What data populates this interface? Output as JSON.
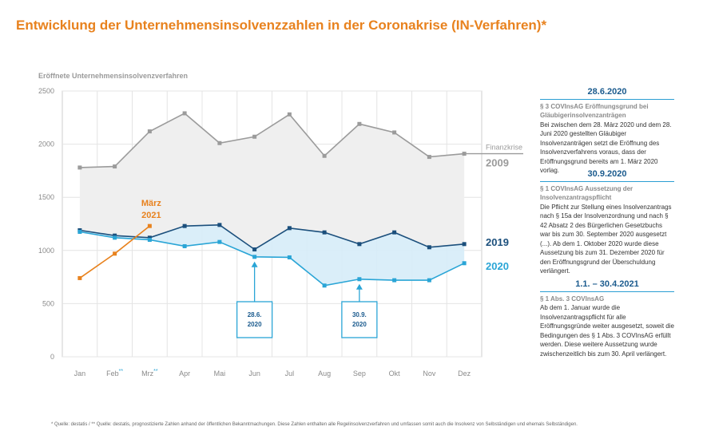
{
  "title": "Entwicklung der Unternehmensinsolvenzzahlen in der Coronakrise (IN-Verfahren)*",
  "colors": {
    "title": "#e8821e",
    "s2009": "#9b9b9b",
    "s2019": "#1b4f7c",
    "s2020": "#2aa5d6",
    "s2021": "#e8821e",
    "band_fill": "#d6ecf8",
    "gray_fill": "#efefef"
  },
  "chart_data": {
    "type": "line",
    "ylabel": "Eröffnete Unternehmensinsolvenzverfahren",
    "ylim": [
      0,
      2500
    ],
    "yticks": [
      "0",
      "500",
      "1000",
      "1500",
      "2000",
      "2500"
    ],
    "categories": [
      "Jan",
      "Feb",
      "Mrz",
      "Apr",
      "Mai",
      "Jun",
      "Jul",
      "Aug",
      "Sep",
      "Okt",
      "Nov",
      "Dez"
    ],
    "category_marks": [
      "",
      "**",
      "**",
      "",
      "",
      "",
      "",
      "",
      "",
      "",
      "",
      ""
    ],
    "grid": true,
    "series": [
      {
        "name": "2009",
        "key": "s2009",
        "values": [
          1780,
          1790,
          2120,
          2290,
          2010,
          2070,
          2280,
          1890,
          2190,
          2110,
          1880,
          1910
        ]
      },
      {
        "name": "2019",
        "key": "s2019",
        "values": [
          1190,
          1140,
          1120,
          1230,
          1240,
          1010,
          1210,
          1170,
          1060,
          1170,
          1030,
          1060
        ]
      },
      {
        "name": "2020",
        "key": "s2020",
        "values": [
          1175,
          1120,
          1100,
          1040,
          1080,
          940,
          935,
          670,
          730,
          720,
          720,
          880
        ]
      },
      {
        "name": "2021",
        "key": "s2021",
        "values": [
          740,
          970,
          1230,
          null,
          null,
          null,
          null,
          null,
          null,
          null,
          null,
          null
        ]
      }
    ],
    "labels": {
      "finanzkrise": "Finanzkrise",
      "s2009": "2009",
      "s2019": "2019",
      "s2020": "2020",
      "s2021_line1": "März",
      "s2021_line2": "2021"
    },
    "annotations": [
      {
        "line1": "28.6.",
        "line2": "2020",
        "month_index": 5
      },
      {
        "line1": "30.9.",
        "line2": "2020",
        "month_index": 8
      }
    ]
  },
  "sidebar": [
    {
      "head": "28.6.2020",
      "sub": "§ 3 COVInsAG Eröffnungsgrund bei Gläubigerinsolvenzanträgen",
      "body": "Bei zwischen dem 28. März 2020 und dem 28. Juni 2020 gestellten Gläubiger Insolvenzanträgen setzt die Eröffnung des Insolvenzverfahrens voraus, dass der Eröffnungsgrund bereits am 1. März 2020 vorlag."
    },
    {
      "head": "30.9.2020",
      "sub": "§ 1 COVInsAG Aussetzung der Insolvenzantragspflicht",
      "body": "Die Pflicht zur Stellung eines Insolvenzantrags nach § 15a der Insolvenzordnung und nach § 42 Absatz 2 des Bürgerlichen Gesetzbuchs war bis zum 30. September 2020 ausgesetzt (...). Ab dem 1. Oktober 2020 wurde diese Aussetzung bis zum 31. Dezember 2020 für den Eröffnungsgrund der Überschuldung verlängert."
    },
    {
      "head": "1.1. – 30.4.2021",
      "sub": "§ 1 Abs. 3 COVInsAG",
      "body": "Ab dem 1. Januar wurde die Insolvenzantragspflicht für alle Eröffnungsgründe weiter ausgesetzt, soweit die Bedingungen des § 1 Abs. 3 COVInsAG erfüllt werden. Diese weitere Aussetzung wurde zwischenzeitlich bis zum 30. April verlängert."
    }
  ],
  "footnote": "* Quelle: destatis / ** Quelle: destatis, prognostizierte Zahlen anhand der öffentlichen Bekanntmachungen. Diese Zahlen enthalten alle Regelinsolvenzverfahren und umfassen somit auch die Insolvenz von Selbständigen und ehemals Selbständigen."
}
